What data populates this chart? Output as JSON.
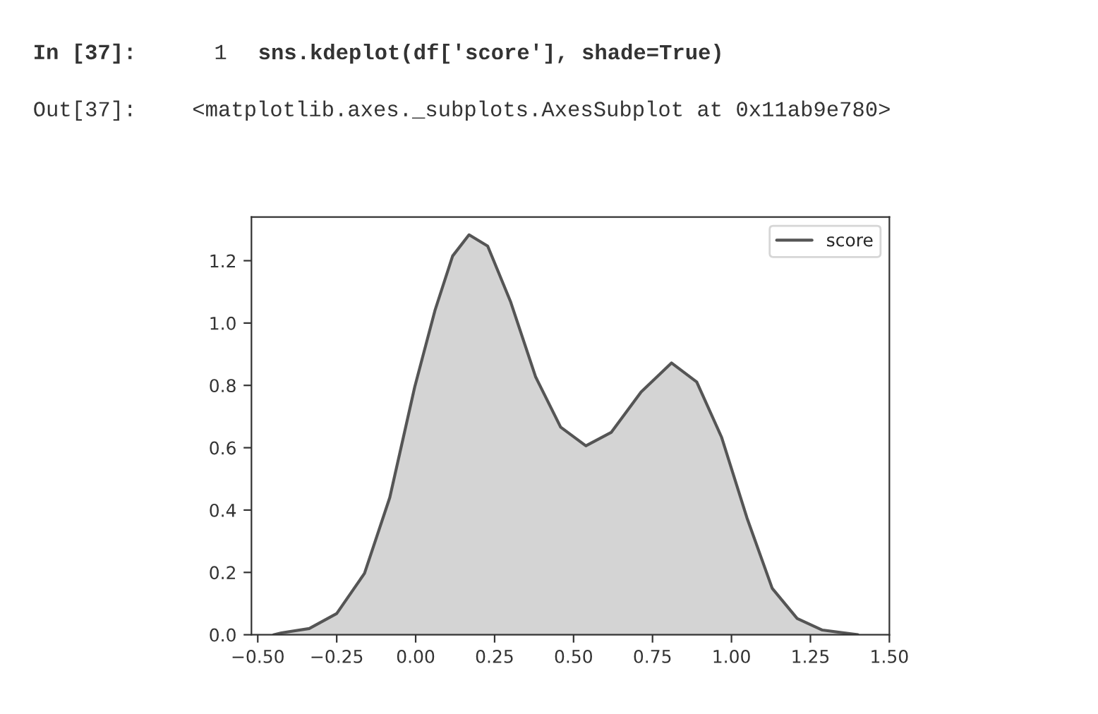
{
  "chart_data": {
    "type": "area",
    "annotations": [
      "In [37]:",
      "1",
      "sns.kdeplot(df['score'], shade=True)",
      "Out[37]:",
      "<matplotlib.axes._subplots.AxesSubplot at 0x11ab9e780>"
    ],
    "x": [
      -0.45,
      -0.425,
      -0.337,
      -0.25,
      -0.162,
      -0.082,
      -0.003,
      0.061,
      0.117,
      0.169,
      0.228,
      0.3,
      0.38,
      0.459,
      0.539,
      0.619,
      0.714,
      0.81,
      0.89,
      0.969,
      1.049,
      1.129,
      1.208,
      1.288,
      1.4
    ],
    "series": [
      {
        "name": "score",
        "color": "#555555",
        "values": [
          0,
          0.006,
          0.02,
          0.068,
          0.197,
          0.44,
          0.795,
          1.04,
          1.215,
          1.283,
          1.247,
          1.07,
          0.827,
          0.666,
          0.606,
          0.649,
          0.779,
          0.872,
          0.811,
          0.633,
          0.375,
          0.149,
          0.052,
          0.015,
          0
        ]
      }
    ],
    "xlim": [
      -0.52,
      1.5
    ],
    "xticks": [
      {
        "value": -0.5,
        "label": "−0.50"
      },
      {
        "value": -0.25,
        "label": "−0.25"
      },
      {
        "value": 0,
        "label": "0.00"
      },
      {
        "value": 0.25,
        "label": "0.25"
      },
      {
        "value": 0.5,
        "label": "0.50"
      },
      {
        "value": 0.75,
        "label": "0.75"
      },
      {
        "value": 1.0,
        "label": "1.00"
      },
      {
        "value": 1.25,
        "label": "1.25"
      },
      {
        "value": 1.5,
        "label": "1.50"
      }
    ],
    "ylim": [
      0,
      1.34
    ],
    "yticks": [
      {
        "value": 0,
        "label": "0.0"
      },
      {
        "value": 0.2,
        "label": "0.2"
      },
      {
        "value": 0.4,
        "label": "0.4"
      },
      {
        "value": 0.6,
        "label": "0.6"
      },
      {
        "value": 0.8,
        "label": "0.8"
      },
      {
        "value": 1.0,
        "label": "1.0"
      },
      {
        "value": 1.2,
        "label": "1.2"
      }
    ],
    "legend": "top right",
    "grid": false
  }
}
